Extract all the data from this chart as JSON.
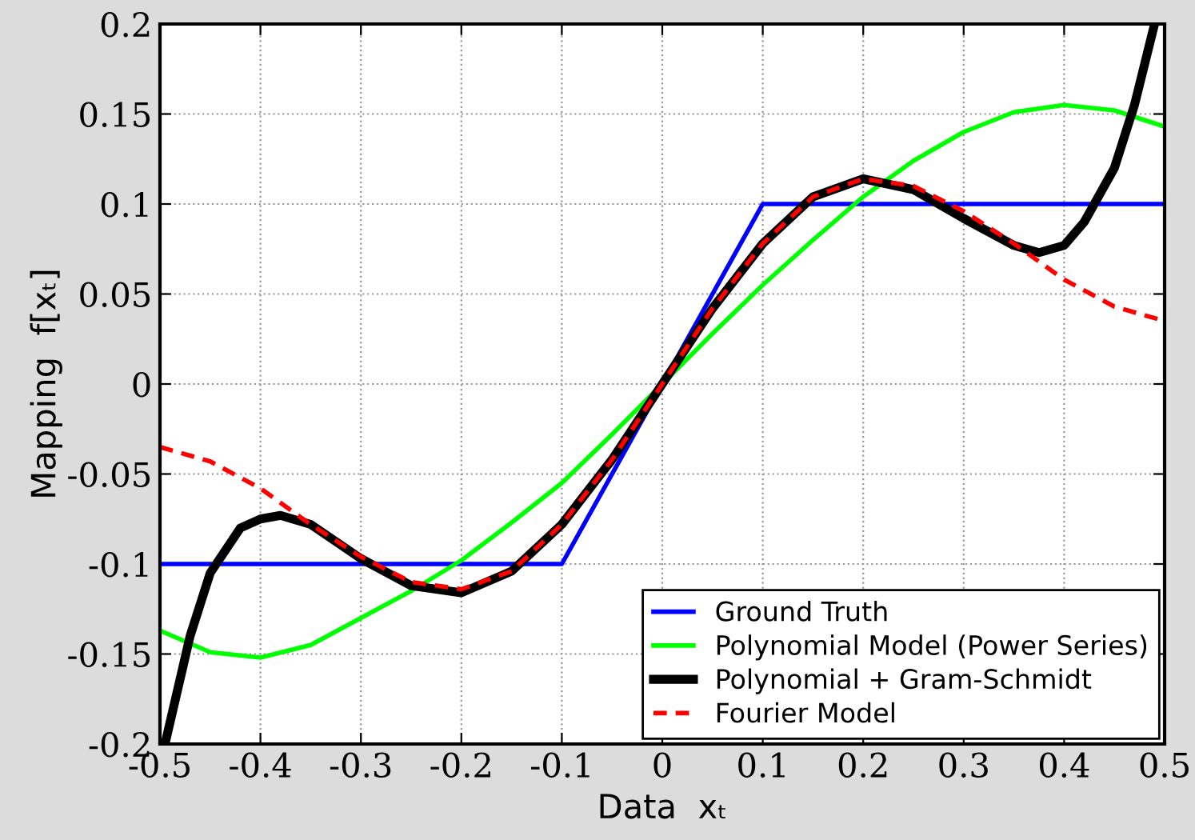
{
  "chart_data": {
    "type": "line",
    "xlabel": "Data  xₜ",
    "ylabel": "Mapping  f[xₜ]",
    "xlim": [
      -0.5,
      0.5
    ],
    "ylim": [
      -0.2,
      0.2
    ],
    "xticks": [
      -0.5,
      -0.4,
      -0.3,
      -0.2,
      -0.1,
      0,
      0.1,
      0.2,
      0.3,
      0.4,
      0.5
    ],
    "yticks": [
      -0.2,
      -0.15,
      -0.1,
      -0.05,
      0,
      0.05,
      0.1,
      0.15,
      0.2
    ],
    "grid": true,
    "legend": "bottom right",
    "marker": "none",
    "series": [
      {
        "name": "Ground Truth",
        "color": "#0000ff",
        "line_style": "solid",
        "x": [
          -0.5,
          -0.1,
          0.1,
          0.5
        ],
        "values": [
          -0.1,
          -0.1,
          0.1,
          0.1
        ]
      },
      {
        "name": "Polynomial Model (Power Series)",
        "color": "#00ff00",
        "line_style": "solid",
        "x": [
          -0.5,
          -0.45,
          -0.4,
          -0.35,
          -0.3,
          -0.25,
          -0.2,
          -0.15,
          -0.1,
          -0.05,
          0,
          0.05,
          0.1,
          0.15,
          0.2,
          0.25,
          0.3,
          0.35,
          0.4,
          0.45,
          0.5
        ],
        "values": [
          -0.137,
          -0.149,
          -0.152,
          -0.145,
          -0.13,
          -0.115,
          -0.098,
          -0.077,
          -0.055,
          -0.028,
          0,
          0.028,
          0.055,
          0.08,
          0.104,
          0.124,
          0.14,
          0.151,
          0.155,
          0.152,
          0.143
        ]
      },
      {
        "name": "Polynomial + Gram-Schmidt",
        "color": "#000000",
        "line_style": "solid",
        "x": [
          -0.495,
          -0.47,
          -0.45,
          -0.42,
          -0.4,
          -0.38,
          -0.35,
          -0.3,
          -0.25,
          -0.2,
          -0.15,
          -0.1,
          -0.05,
          0,
          0.05,
          0.1,
          0.15,
          0.2,
          0.25,
          0.3,
          0.35,
          0.375,
          0.4,
          0.42,
          0.45,
          0.47,
          0.49
        ],
        "values": [
          -0.2,
          -0.14,
          -0.105,
          -0.08,
          -0.075,
          -0.073,
          -0.078,
          -0.097,
          -0.112,
          -0.116,
          -0.104,
          -0.078,
          -0.042,
          0,
          0.042,
          0.078,
          0.104,
          0.114,
          0.108,
          0.092,
          0.077,
          0.073,
          0.077,
          0.09,
          0.12,
          0.155,
          0.2
        ]
      },
      {
        "name": "Fourier Model",
        "color": "#ff0000",
        "line_style": "dashed",
        "x": [
          -0.5,
          -0.45,
          -0.4,
          -0.35,
          -0.3,
          -0.25,
          -0.2,
          -0.15,
          -0.1,
          -0.05,
          0,
          0.05,
          0.1,
          0.15,
          0.2,
          0.25,
          0.3,
          0.35,
          0.4,
          0.45,
          0.5
        ],
        "values": [
          -0.035,
          -0.043,
          -0.058,
          -0.078,
          -0.096,
          -0.11,
          -0.114,
          -0.104,
          -0.078,
          -0.042,
          0,
          0.042,
          0.078,
          0.104,
          0.114,
          0.11,
          0.096,
          0.078,
          0.058,
          0.043,
          0.035
        ]
      }
    ]
  }
}
